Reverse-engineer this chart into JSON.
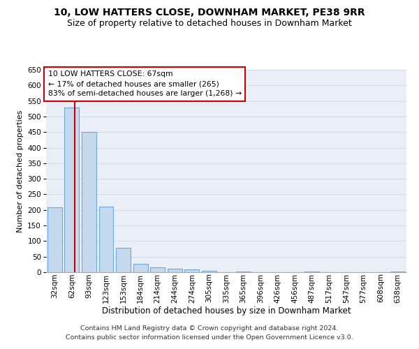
{
  "title": "10, LOW HATTERS CLOSE, DOWNHAM MARKET, PE38 9RR",
  "subtitle": "Size of property relative to detached houses in Downham Market",
  "xlabel": "Distribution of detached houses by size in Downham Market",
  "ylabel": "Number of detached properties",
  "footer_line1": "Contains HM Land Registry data © Crown copyright and database right 2024.",
  "footer_line2": "Contains public sector information licensed under the Open Government Licence v3.0.",
  "categories": [
    "32sqm",
    "62sqm",
    "93sqm",
    "123sqm",
    "153sqm",
    "184sqm",
    "214sqm",
    "244sqm",
    "274sqm",
    "305sqm",
    "335sqm",
    "365sqm",
    "396sqm",
    "426sqm",
    "456sqm",
    "487sqm",
    "517sqm",
    "547sqm",
    "577sqm",
    "608sqm",
    "638sqm"
  ],
  "values": [
    209,
    530,
    450,
    210,
    78,
    27,
    16,
    12,
    8,
    5,
    0,
    3,
    0,
    0,
    0,
    2,
    0,
    1,
    0,
    0,
    2
  ],
  "bar_color": "#c5d8ed",
  "bar_edge_color": "#6aaad4",
  "bar_edge_width": 0.8,
  "property_line_color": "#cc0000",
  "annotation_line1": "10 LOW HATTERS CLOSE: 67sqm",
  "annotation_line2": "← 17% of detached houses are smaller (265)",
  "annotation_line3": "83% of semi-detached houses are larger (1,268) →",
  "annotation_box_color": "#cc0000",
  "ylim_max": 650,
  "ytick_step": 50,
  "grid_color": "#d0d8e4",
  "bg_color": "#eaeff7",
  "title_fontsize": 10,
  "subtitle_fontsize": 9,
  "xlabel_fontsize": 8.5,
  "ylabel_fontsize": 8,
  "tick_fontsize": 7.5,
  "annotation_fontsize": 7.8,
  "footer_fontsize": 6.8
}
